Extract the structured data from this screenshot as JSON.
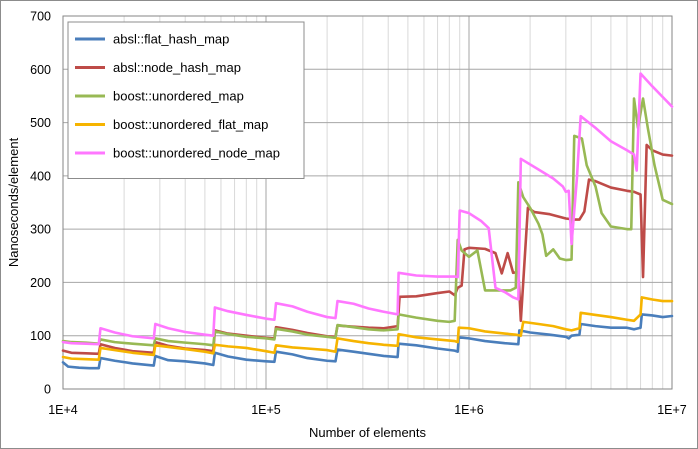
{
  "chart_data": {
    "type": "line",
    "xlabel": "Number of elements",
    "ylabel": "Nanoseconds/element",
    "x_scale": "log",
    "xlim": [
      10000,
      10000000
    ],
    "ylim": [
      0,
      700
    ],
    "x_ticks": [
      {
        "value": 10000,
        "label": "1E+4"
      },
      {
        "value": 100000,
        "label": "1E+5"
      },
      {
        "value": 1000000,
        "label": "1E+6"
      },
      {
        "value": 10000000,
        "label": "1E+7"
      }
    ],
    "y_ticks": [
      {
        "value": 0,
        "label": "0"
      },
      {
        "value": 100,
        "label": "100"
      },
      {
        "value": 200,
        "label": "200"
      },
      {
        "value": 300,
        "label": "300"
      },
      {
        "value": 400,
        "label": "400"
      },
      {
        "value": 500,
        "label": "500"
      },
      {
        "value": 600,
        "label": "600"
      },
      {
        "value": 700,
        "label": "700"
      }
    ],
    "grid": true,
    "legend_position": "top-left",
    "series": [
      {
        "name": "absl::flat_hash_map",
        "color": "#4a7ebb",
        "points": [
          [
            10000,
            50
          ],
          [
            10600,
            42
          ],
          [
            12000,
            40
          ],
          [
            13500,
            39
          ],
          [
            15000,
            39
          ],
          [
            15300,
            58
          ],
          [
            18000,
            53
          ],
          [
            22000,
            48
          ],
          [
            28000,
            44
          ],
          [
            28500,
            62
          ],
          [
            33000,
            54
          ],
          [
            40000,
            52
          ],
          [
            50000,
            48
          ],
          [
            55000,
            45
          ],
          [
            56000,
            68
          ],
          [
            65000,
            61
          ],
          [
            80000,
            55
          ],
          [
            100000,
            52
          ],
          [
            110000,
            51
          ],
          [
            112000,
            70
          ],
          [
            135000,
            65
          ],
          [
            160000,
            58
          ],
          [
            200000,
            53
          ],
          [
            220000,
            52
          ],
          [
            225000,
            74
          ],
          [
            270000,
            70
          ],
          [
            320000,
            66
          ],
          [
            380000,
            62
          ],
          [
            445000,
            60
          ],
          [
            450000,
            85
          ],
          [
            550000,
            82
          ],
          [
            700000,
            76
          ],
          [
            850000,
            72
          ],
          [
            880000,
            70
          ],
          [
            890000,
            97
          ],
          [
            1000000,
            95
          ],
          [
            1200000,
            90
          ],
          [
            1500000,
            86
          ],
          [
            1750000,
            84
          ],
          [
            1770000,
            110
          ],
          [
            2000000,
            106
          ],
          [
            2500000,
            102
          ],
          [
            3000000,
            98
          ],
          [
            3100000,
            95
          ],
          [
            3200000,
            100
          ],
          [
            3500000,
            102
          ],
          [
            3550000,
            122
          ],
          [
            4200000,
            118
          ],
          [
            5000000,
            115
          ],
          [
            6000000,
            115
          ],
          [
            6500000,
            112
          ],
          [
            7000000,
            115
          ],
          [
            7100000,
            140
          ],
          [
            8000000,
            138
          ],
          [
            9000000,
            135
          ],
          [
            10000000,
            137
          ]
        ]
      },
      {
        "name": "absl::node_hash_map",
        "color": "#be4b48",
        "points": [
          [
            10000,
            72
          ],
          [
            11000,
            68
          ],
          [
            13000,
            67
          ],
          [
            15000,
            66
          ],
          [
            15300,
            84
          ],
          [
            18000,
            77
          ],
          [
            22000,
            71
          ],
          [
            28000,
            68
          ],
          [
            28500,
            88
          ],
          [
            33000,
            81
          ],
          [
            40000,
            76
          ],
          [
            50000,
            73
          ],
          [
            55000,
            71
          ],
          [
            56000,
            110
          ],
          [
            65000,
            104
          ],
          [
            80000,
            100
          ],
          [
            100000,
            96
          ],
          [
            110000,
            95
          ],
          [
            112000,
            116
          ],
          [
            135000,
            111
          ],
          [
            160000,
            105
          ],
          [
            200000,
            99
          ],
          [
            220000,
            98
          ],
          [
            225000,
            119
          ],
          [
            270000,
            117
          ],
          [
            320000,
            115
          ],
          [
            380000,
            114
          ],
          [
            445000,
            118
          ],
          [
            455000,
            173
          ],
          [
            550000,
            174
          ],
          [
            700000,
            180
          ],
          [
            800000,
            183
          ],
          [
            850000,
            176
          ],
          [
            880000,
            190
          ],
          [
            920000,
            194
          ],
          [
            950000,
            262
          ],
          [
            1000000,
            265
          ],
          [
            1200000,
            263
          ],
          [
            1350000,
            255
          ],
          [
            1450000,
            217
          ],
          [
            1550000,
            255
          ],
          [
            1650000,
            218
          ],
          [
            1750000,
            220
          ],
          [
            1800000,
            128
          ],
          [
            1950000,
            340
          ],
          [
            2100000,
            332
          ],
          [
            2500000,
            328
          ],
          [
            3000000,
            320
          ],
          [
            3300000,
            318
          ],
          [
            3500000,
            318
          ],
          [
            3700000,
            333
          ],
          [
            3900000,
            393
          ],
          [
            4200000,
            390
          ],
          [
            5000000,
            378
          ],
          [
            6000000,
            372
          ],
          [
            6500000,
            370
          ],
          [
            7000000,
            365
          ],
          [
            7200000,
            210
          ],
          [
            7500000,
            458
          ],
          [
            8000000,
            448
          ],
          [
            9000000,
            440
          ],
          [
            10000000,
            438
          ]
        ]
      },
      {
        "name": "boost::unordered_map",
        "color": "#98b954",
        "points": [
          [
            10000,
            90
          ],
          [
            11000,
            88
          ],
          [
            13000,
            87
          ],
          [
            15000,
            85
          ],
          [
            15300,
            93
          ],
          [
            18000,
            88
          ],
          [
            22000,
            85
          ],
          [
            28000,
            82
          ],
          [
            28500,
            95
          ],
          [
            33000,
            90
          ],
          [
            40000,
            87
          ],
          [
            50000,
            84
          ],
          [
            55000,
            82
          ],
          [
            56000,
            108
          ],
          [
            65000,
            103
          ],
          [
            80000,
            98
          ],
          [
            100000,
            95
          ],
          [
            110000,
            93
          ],
          [
            112000,
            113
          ],
          [
            135000,
            108
          ],
          [
            160000,
            102
          ],
          [
            200000,
            98
          ],
          [
            220000,
            96
          ],
          [
            225000,
            120
          ],
          [
            270000,
            116
          ],
          [
            320000,
            112
          ],
          [
            380000,
            110
          ],
          [
            445000,
            112
          ],
          [
            450000,
            140
          ],
          [
            550000,
            134
          ],
          [
            700000,
            128
          ],
          [
            800000,
            126
          ],
          [
            850000,
            128
          ],
          [
            880000,
            280
          ],
          [
            920000,
            260
          ],
          [
            1000000,
            248
          ],
          [
            1100000,
            260
          ],
          [
            1200000,
            185
          ],
          [
            1400000,
            185
          ],
          [
            1600000,
            185
          ],
          [
            1700000,
            190
          ],
          [
            1750000,
            388
          ],
          [
            1850000,
            360
          ],
          [
            2000000,
            340
          ],
          [
            2200000,
            310
          ],
          [
            2300000,
            290
          ],
          [
            2400000,
            250
          ],
          [
            2600000,
            262
          ],
          [
            2800000,
            245
          ],
          [
            3000000,
            242
          ],
          [
            3200000,
            243
          ],
          [
            3300000,
            475
          ],
          [
            3600000,
            470
          ],
          [
            3800000,
            420
          ],
          [
            4200000,
            380
          ],
          [
            4500000,
            330
          ],
          [
            5000000,
            305
          ],
          [
            6000000,
            300
          ],
          [
            6300000,
            300
          ],
          [
            6500000,
            545
          ],
          [
            6800000,
            490
          ],
          [
            7200000,
            545
          ],
          [
            7600000,
            490
          ],
          [
            8200000,
            420
          ],
          [
            9000000,
            355
          ],
          [
            10000000,
            347
          ]
        ]
      },
      {
        "name": "boost::unordered_flat_map",
        "color": "#f6b400",
        "points": [
          [
            10000,
            60
          ],
          [
            11000,
            57
          ],
          [
            13000,
            56
          ],
          [
            15000,
            55
          ],
          [
            15300,
            77
          ],
          [
            18000,
            73
          ],
          [
            22000,
            68
          ],
          [
            28000,
            64
          ],
          [
            28500,
            82
          ],
          [
            33000,
            79
          ],
          [
            40000,
            75
          ],
          [
            50000,
            70
          ],
          [
            55000,
            67
          ],
          [
            56000,
            83
          ],
          [
            65000,
            80
          ],
          [
            80000,
            77
          ],
          [
            100000,
            71
          ],
          [
            110000,
            68
          ],
          [
            112000,
            82
          ],
          [
            135000,
            78
          ],
          [
            160000,
            76
          ],
          [
            200000,
            73
          ],
          [
            220000,
            70
          ],
          [
            225000,
            95
          ],
          [
            270000,
            90
          ],
          [
            320000,
            86
          ],
          [
            380000,
            83
          ],
          [
            445000,
            81
          ],
          [
            450000,
            103
          ],
          [
            550000,
            97
          ],
          [
            700000,
            93
          ],
          [
            850000,
            90
          ],
          [
            880000,
            88
          ],
          [
            890000,
            115
          ],
          [
            1000000,
            114
          ],
          [
            1200000,
            108
          ],
          [
            1500000,
            104
          ],
          [
            1700000,
            102
          ],
          [
            1800000,
            100
          ],
          [
            1850000,
            126
          ],
          [
            2200000,
            122
          ],
          [
            2600000,
            118
          ],
          [
            3000000,
            112
          ],
          [
            3200000,
            110
          ],
          [
            3500000,
            114
          ],
          [
            3550000,
            143
          ],
          [
            4200000,
            139
          ],
          [
            5000000,
            135
          ],
          [
            6000000,
            130
          ],
          [
            6500000,
            128
          ],
          [
            7000000,
            140
          ],
          [
            7100000,
            172
          ],
          [
            8000000,
            168
          ],
          [
            9000000,
            165
          ],
          [
            10000000,
            165
          ]
        ]
      },
      {
        "name": "boost::unordered_node_map",
        "color": "#ff77ff",
        "points": [
          [
            10000,
            88
          ],
          [
            11000,
            86
          ],
          [
            13000,
            85
          ],
          [
            15000,
            84
          ],
          [
            15300,
            114
          ],
          [
            18000,
            106
          ],
          [
            22000,
            99
          ],
          [
            28000,
            95
          ],
          [
            28500,
            122
          ],
          [
            33000,
            114
          ],
          [
            40000,
            107
          ],
          [
            50000,
            102
          ],
          [
            55000,
            100
          ],
          [
            56000,
            153
          ],
          [
            65000,
            146
          ],
          [
            80000,
            139
          ],
          [
            100000,
            132
          ],
          [
            110000,
            130
          ],
          [
            112000,
            161
          ],
          [
            135000,
            155
          ],
          [
            160000,
            145
          ],
          [
            200000,
            135
          ],
          [
            220000,
            133
          ],
          [
            225000,
            165
          ],
          [
            270000,
            160
          ],
          [
            320000,
            151
          ],
          [
            380000,
            145
          ],
          [
            445000,
            140
          ],
          [
            450000,
            218
          ],
          [
            550000,
            213
          ],
          [
            700000,
            211
          ],
          [
            850000,
            211
          ],
          [
            880000,
            210
          ],
          [
            900000,
            335
          ],
          [
            1000000,
            330
          ],
          [
            1150000,
            315
          ],
          [
            1250000,
            302
          ],
          [
            1350000,
            190
          ],
          [
            1500000,
            182
          ],
          [
            1650000,
            172
          ],
          [
            1750000,
            168
          ],
          [
            1800000,
            432
          ],
          [
            2200000,
            412
          ],
          [
            2600000,
            395
          ],
          [
            2900000,
            380
          ],
          [
            3000000,
            370
          ],
          [
            3100000,
            372
          ],
          [
            3200000,
            272
          ],
          [
            3400000,
            395
          ],
          [
            3550000,
            512
          ],
          [
            4200000,
            490
          ],
          [
            5000000,
            465
          ],
          [
            6000000,
            448
          ],
          [
            6500000,
            440
          ],
          [
            6700000,
            410
          ],
          [
            7000000,
            592
          ],
          [
            8000000,
            568
          ],
          [
            9000000,
            548
          ],
          [
            10000000,
            530
          ]
        ]
      }
    ]
  }
}
